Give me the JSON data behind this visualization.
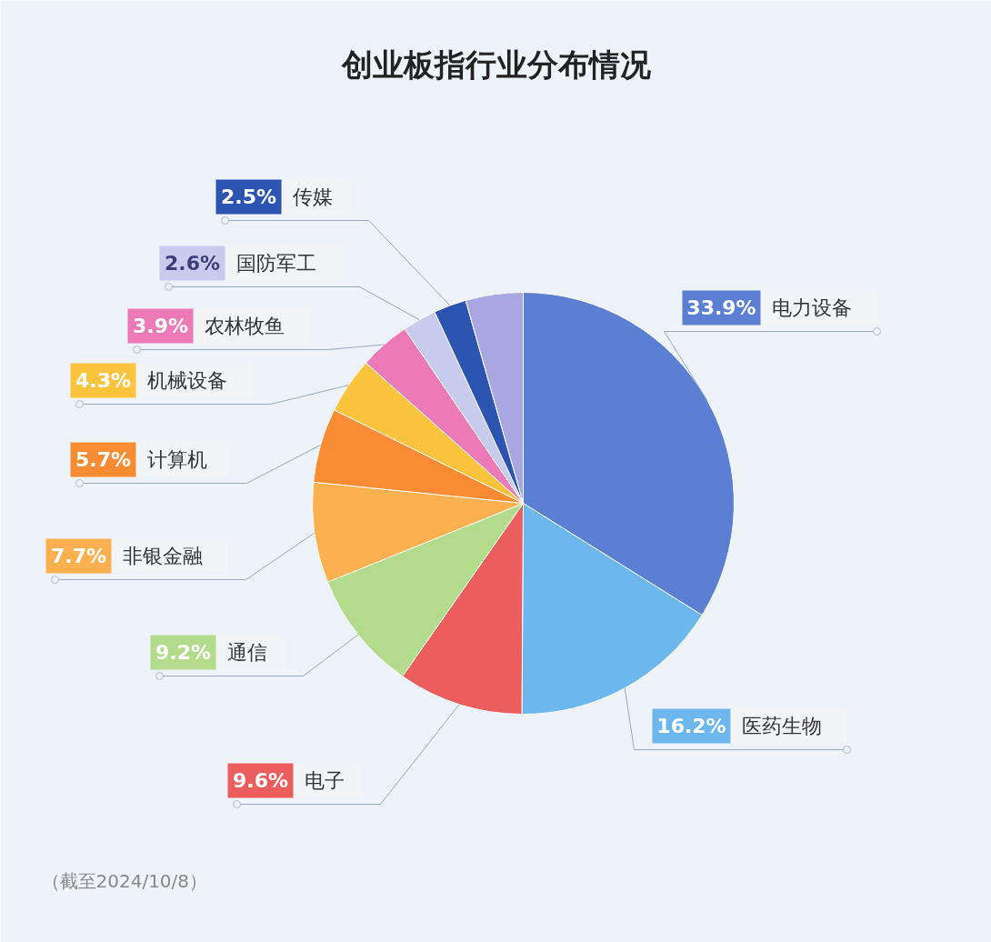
{
  "chart_data": {
    "type": "pie",
    "title": "创业板指行业分布情况",
    "categories": [
      "电力设备",
      "医药生物",
      "电子",
      "通信",
      "非银金融",
      "计算机",
      "机械设备",
      "农林牧鱼",
      "国防军工",
      "传媒",
      null
    ],
    "values": [
      33.9,
      16.2,
      9.6,
      9.2,
      7.7,
      5.7,
      4.3,
      3.9,
      2.6,
      2.5,
      4.4
    ],
    "value_labels": [
      "33.9%",
      "16.2%",
      "9.6%",
      "9.2%",
      "7.7%",
      "5.7%",
      "4.3%",
      "3.9%",
      "2.6%",
      "2.5%",
      null
    ],
    "colors": [
      "#5b7fd2",
      "#6cb8ee",
      "#ec5e5e",
      "#b2dc8c",
      "#fdb04e",
      "#f98c32",
      "#fcc43c",
      "#ec7ab6",
      "#c9cbee",
      "#2b55b0",
      "#a8a7e2"
    ],
    "annotations": [
      "（截至2024/10/8）"
    ],
    "legend": "left"
  }
}
